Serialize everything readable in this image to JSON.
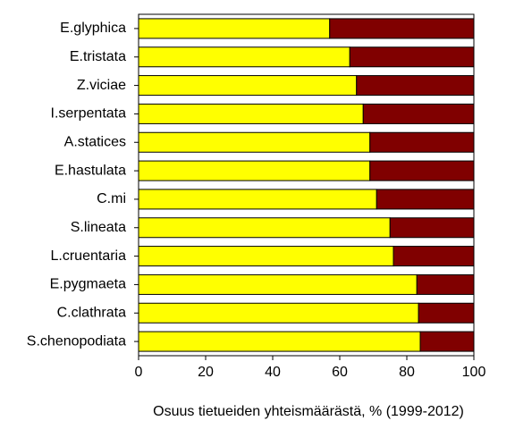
{
  "chart_data": {
    "type": "stacked-barh",
    "xlabel": "Osuus tietueiden yhteismäärästä, % (1999-2012)",
    "categories": [
      "E.glyphica",
      "E.tristata",
      "Z.viciae",
      "I.serpentata",
      "A.statices",
      "E.hastulata",
      "C.mi",
      "S.lineata",
      "L.cruentaria",
      "E.pygmaeta",
      "C.clathrata",
      "S.chenopodiata"
    ],
    "series": [
      {
        "color": "#ffff00",
        "values": [
          57,
          63,
          65,
          67,
          69,
          69,
          71,
          75,
          76,
          83,
          83.5,
          84
        ]
      },
      {
        "color": "#800000",
        "values": [
          43,
          37,
          35,
          33,
          31,
          31,
          29,
          25,
          24,
          17,
          16.5,
          16
        ]
      }
    ],
    "xlim": [
      0,
      100
    ],
    "xticks": [
      0,
      20,
      40,
      60,
      80,
      100
    ],
    "grid": false
  }
}
